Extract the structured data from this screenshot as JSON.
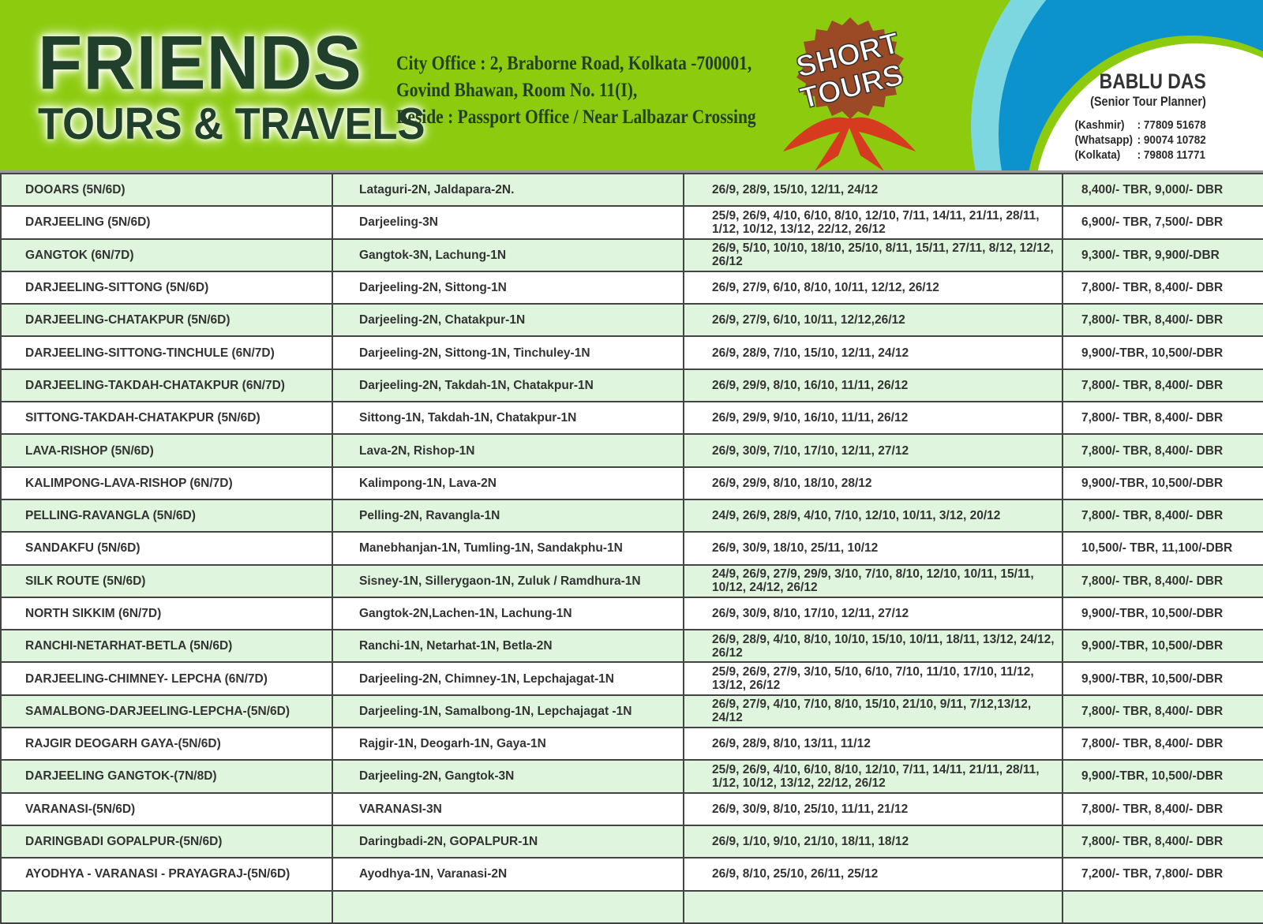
{
  "header": {
    "logo_line1": "FRIENDS",
    "logo_line2": "TOURS & TRAVELS",
    "address": [
      "City Office : 2, Braborne Road, Kolkata -700001,",
      "Govind Bhawan, Room No. 11(I),",
      "Beside : Passport Office / Near Lalbazar Crossing"
    ],
    "badge": {
      "line1": "SHORT",
      "line2": "TOURS"
    },
    "contact": {
      "name": "BABLU DAS",
      "role": "(Senior Tour Planner)",
      "phones": [
        {
          "label": "(Kashmir)",
          "number": ": 77809 51678"
        },
        {
          "label": "(Whatsapp)",
          "number": ": 90074 10782"
        },
        {
          "label": "(Kolkata)",
          "number": ": 79808 11771"
        }
      ]
    }
  },
  "colors": {
    "header_green": "#8ccb0e",
    "row_green": "#dff5dd",
    "logo_dark": "#21402c",
    "blue": "#0c93cd",
    "light_blue": "#7dd7e0",
    "badge_red": "#d63a1f"
  },
  "tours": [
    [
      "DOOARS (5N/6D)",
      "Lataguri-2N, Jaldapara-2N.",
      "26/9, 28/9, 15/10, 12/11, 24/12",
      "8,400/- TBR, 9,000/- DBR"
    ],
    [
      "DARJEELING (5N/6D)",
      "Darjeeling-3N",
      "25/9, 26/9, 4/10, 6/10, 8/10, 12/10, 7/11, 14/11, 21/11, 28/11, 1/12, 10/12, 13/12, 22/12, 26/12",
      "6,900/- TBR, 7,500/- DBR"
    ],
    [
      "GANGTOK (6N/7D)",
      "Gangtok-3N,  Lachung-1N",
      "26/9, 5/10, 10/10, 18/10, 25/10, 8/11, 15/11, 27/11, 8/12, 12/12, 26/12",
      "9,300/- TBR, 9,900/-DBR"
    ],
    [
      "DARJEELING-SITTONG (5N/6D)",
      "Darjeeling-2N, Sittong-1N",
      "26/9, 27/9, 6/10, 8/10, 10/11, 12/12, 26/12",
      "7,800/- TBR, 8,400/- DBR"
    ],
    [
      "DARJEELING-CHATAKPUR (5N/6D)",
      "Darjeeling-2N, Chatakpur-1N",
      "26/9, 27/9, 6/10, 10/11, 12/12,26/12",
      "7,800/- TBR, 8,400/- DBR"
    ],
    [
      "DARJEELING-SITTONG-TINCHULE (6N/7D)",
      "Darjeeling-2N, Sittong-1N, Tinchuley-1N",
      "26/9, 28/9, 7/10, 15/10, 12/11, 24/12",
      "9,900/-TBR, 10,500/-DBR"
    ],
    [
      "DARJEELING-TAKDAH-CHATAKPUR (6N/7D)",
      "Darjeeling-2N, Takdah-1N, Chatakpur-1N",
      "26/9, 29/9, 8/10, 16/10, 11/11, 26/12",
      "7,800/- TBR, 8,400/- DBR"
    ],
    [
      "SITTONG-TAKDAH-CHATAKPUR (5N/6D)",
      "Sittong-1N, Takdah-1N, Chatakpur-1N",
      "26/9, 29/9, 9/10, 16/10, 11/11, 26/12",
      "7,800/- TBR, 8,400/- DBR"
    ],
    [
      "LAVA-RISHOP (5N/6D)",
      "Lava-2N, Rishop-1N",
      "26/9, 30/9, 7/10, 17/10, 12/11, 27/12",
      "7,800/- TBR, 8,400/- DBR"
    ],
    [
      "KALIMPONG-LAVA-RISHOP (6N/7D)",
      "Kalimpong-1N, Lava-2N",
      "26/9, 29/9, 8/10, 18/10, 28/12",
      "9,900/-TBR, 10,500/-DBR"
    ],
    [
      "PELLING-RAVANGLA (5N/6D)",
      "Pelling-2N, Ravangla-1N",
      "24/9, 26/9, 28/9, 4/10, 7/10, 12/10, 10/11, 3/12, 20/12",
      "7,800/- TBR, 8,400/- DBR"
    ],
    [
      "SANDAKFU (5N/6D)",
      "Manebhanjan-1N, Tumling-1N, Sandakphu-1N",
      "26/9, 30/9, 18/10, 25/11, 10/12",
      "10,500/- TBR, 11,100/-DBR"
    ],
    [
      "SILK ROUTE (5N/6D)",
      "Sisney-1N, Sillerygaon-1N,  Zuluk / Ramdhura-1N",
      "24/9, 26/9, 27/9, 29/9, 3/10, 7/10, 8/10, 12/10, 10/11, 15/11, 10/12, 24/12, 26/12",
      "7,800/- TBR, 8,400/- DBR"
    ],
    [
      "NORTH SIKKIM (6N/7D)",
      "Gangtok-2N,Lachen-1N, Lachung-1N",
      "26/9, 30/9, 8/10, 17/10, 12/11, 27/12",
      "9,900/-TBR, 10,500/-DBR"
    ],
    [
      "RANCHI-NETARHAT-BETLA (5N/6D)",
      "Ranchi-1N, Netarhat-1N, Betla-2N",
      "26/9, 28/9, 4/10, 8/10, 10/10, 15/10, 10/11, 18/11, 13/12, 24/12, 26/12",
      "9,900/-TBR, 10,500/-DBR"
    ],
    [
      "DARJEELING-CHIMNEY- LEPCHA (6N/7D)",
      "Darjeeling-2N, Chimney-1N, Lepchajagat-1N",
      "25/9, 26/9, 27/9, 3/10, 5/10, 6/10, 7/10, 11/10, 17/10, 11/12, 13/12, 26/12",
      "9,900/-TBR, 10,500/-DBR"
    ],
    [
      "SAMALBONG-DARJEELING-LEPCHA-(5N/6D)",
      "Darjeeling-1N, Samalbong-1N, Lepchajagat -1N",
      "26/9, 27/9, 4/10, 7/10, 8/10, 15/10, 21/10, 9/11, 7/12,13/12, 24/12",
      "7,800/- TBR, 8,400/- DBR"
    ],
    [
      "RAJGIR DEOGARH GAYA-(5N/6D)",
      "Rajgir-1N, Deogarh-1N, Gaya-1N",
      "26/9, 28/9, 8/10, 13/11, 11/12",
      "7,800/- TBR, 8,400/- DBR"
    ],
    [
      "DARJEELING GANGTOK-(7N/8D)",
      "Darjeeling-2N, Gangtok-3N",
      "25/9, 26/9, 4/10, 6/10, 8/10, 12/10, 7/11, 14/11, 21/11, 28/11, 1/12, 10/12, 13/12, 22/12, 26/12",
      "9,900/-TBR, 10,500/-DBR"
    ],
    [
      "VARANASI-(5N/6D)",
      "VARANASI-3N",
      "26/9, 30/9, 8/10, 25/10, 11/11, 21/12",
      "7,800/- TBR, 8,400/- DBR"
    ],
    [
      "DARINGBADI GOPALPUR-(5N/6D)",
      "Daringbadi-2N, GOPALPUR-1N",
      "26/9, 1/10, 9/10, 21/10, 18/11, 18/12",
      "7,800/- TBR, 8,400/- DBR"
    ],
    [
      "AYODHYA - VARANASI - PRAYAGRAJ-(5N/6D)",
      "Ayodhya-1N, Varanasi-2N",
      "26/9, 8/10, 25/10, 26/11, 25/12",
      "7,200/- TBR, 7,800/- DBR"
    ]
  ]
}
